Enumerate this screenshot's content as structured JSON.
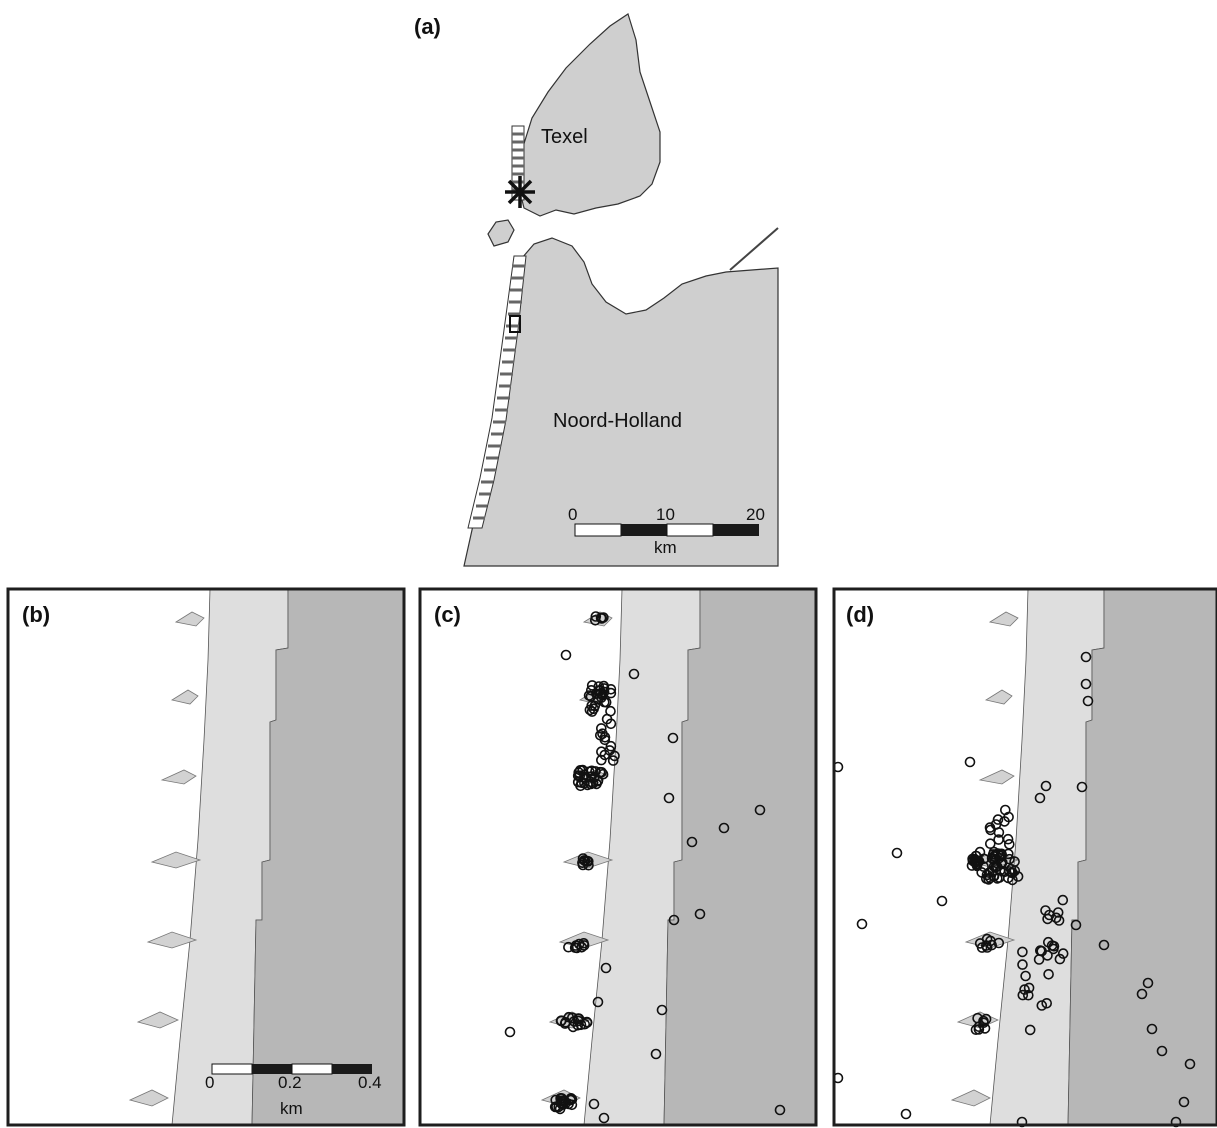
{
  "panels": {
    "a": {
      "label": "(a)",
      "places": [
        "Texel",
        "Noord-Holland"
      ],
      "scale": {
        "ticks": [
          "0",
          "10",
          "20"
        ],
        "unit": "km"
      }
    },
    "b": {
      "label": "(b)",
      "scale": {
        "ticks": [
          "0",
          "0.2",
          "0.4"
        ],
        "unit": "km"
      }
    },
    "c": {
      "label": "(c)"
    },
    "d": {
      "label": "(d)"
    }
  }
}
